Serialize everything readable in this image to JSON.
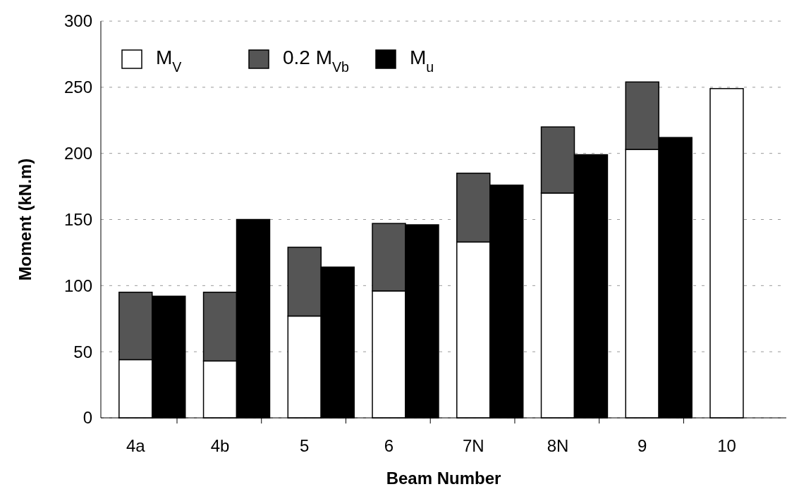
{
  "chart_data": {
    "type": "bar",
    "xlabel": "Beam Number",
    "ylabel": "Moment (kN.m)",
    "categories": [
      "4a",
      null,
      "4b",
      null,
      "5",
      null,
      "6",
      null,
      "7N",
      null,
      "8N",
      null,
      "9",
      null,
      "10"
    ],
    "stacked": true,
    "series": [
      {
        "name": "M$_{V}$",
        "color": "#ffffff",
        "values": [
          44,
          null,
          43,
          null,
          77,
          null,
          96,
          null,
          133,
          null,
          170,
          null,
          203,
          null,
          249
        ]
      },
      {
        "name": "0.2 M$_{Vb}$",
        "color": "#555555",
        "values": [
          51,
          null,
          52,
          null,
          52,
          null,
          51,
          null,
          52,
          null,
          50,
          null,
          51,
          null,
          null
        ]
      },
      {
        "name": "M$_{u}$",
        "color": "#000000",
        "values": [
          null,
          92,
          null,
          150,
          null,
          114,
          null,
          146,
          null,
          176,
          null,
          199,
          null,
          212,
          null
        ]
      }
    ],
    "ylim": [
      0,
      300
    ],
    "yticks": [
      0,
      50,
      100,
      150,
      200,
      250,
      300
    ],
    "grid": "y",
    "legend": "top left"
  }
}
